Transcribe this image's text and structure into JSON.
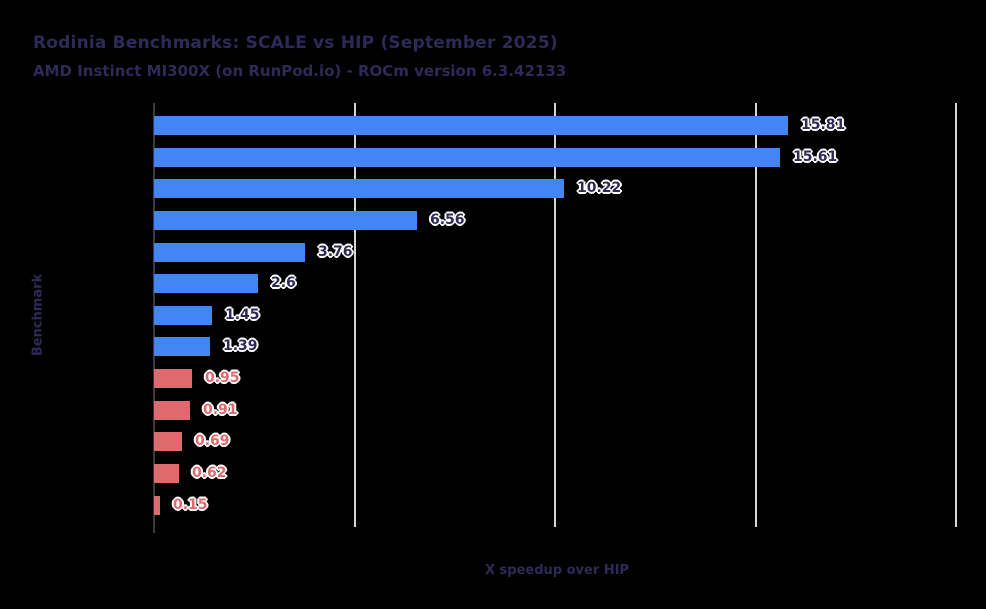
{
  "chart_data": {
    "type": "bar",
    "orientation": "horizontal",
    "title": "Rodinia Benchmarks: SCALE vs HIP (September 2025)",
    "subtitle": "AMD Instinct MI300X (on RunPod.io) - ROCm version 6.3.42133",
    "xlabel": "X speedup over HIP",
    "ylabel": "Benchmark",
    "xlim": [
      0,
      20.2
    ],
    "x_gridlines": [
      5,
      10,
      15,
      20
    ],
    "grid": true,
    "values": [
      15.81,
      15.61,
      10.22,
      6.56,
      3.76,
      2.6,
      1.45,
      1.39,
      0.95,
      0.91,
      0.69,
      0.62,
      0.15
    ],
    "value_labels": [
      "15.81",
      "15.61",
      "10.22",
      "6.56",
      "3.76",
      "2.6",
      "1.45",
      "1.39",
      "0.95",
      "0.91",
      "0.69",
      "0.62",
      "0.15"
    ],
    "color_threshold": 1,
    "colors": {
      "speedup_bar": "#4285f4",
      "slowdown_bar": "#e0696e",
      "heading_text": "#2e2a57",
      "gridline": "#d4d4d4",
      "axis_line": "#3b3b3b",
      "background": "#000000"
    }
  }
}
